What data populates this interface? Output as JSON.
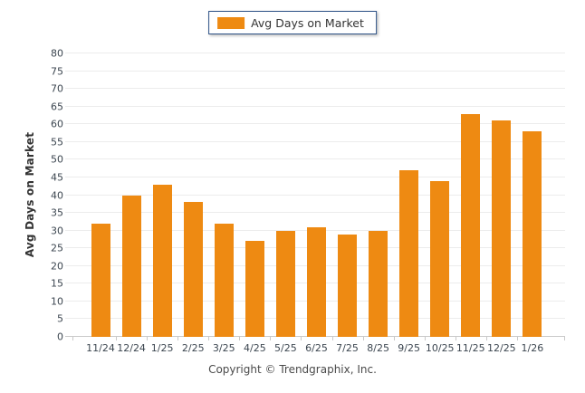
{
  "legend": {
    "label": "Avg Days on Market"
  },
  "y_axis": {
    "title": "Avg Days on Market"
  },
  "footer": {
    "copyright": "Copyright © Trendgraphix, Inc."
  },
  "colors": {
    "bar": "#EE8A12",
    "legend_border": "#2E5387",
    "grid_line": "#ECECEC",
    "axis_line": "#C9C9C9",
    "tick_label": "#3C4650",
    "text": "#333333",
    "copyright_text": "#4A4A4A"
  },
  "chart_data": {
    "type": "bar",
    "title": "",
    "legend_entries": [
      "Avg Days on Market"
    ],
    "legend_position": "top-center",
    "categories": [
      "11/24",
      "12/24",
      "1/25",
      "2/25",
      "3/25",
      "4/25",
      "5/25",
      "6/25",
      "7/25",
      "8/25",
      "9/25",
      "10/25",
      "11/25",
      "12/25",
      "1/26"
    ],
    "values": [
      32,
      40,
      43,
      38,
      32,
      27,
      30,
      31,
      29,
      30,
      47,
      44,
      63,
      61,
      58
    ],
    "xlabel": "",
    "ylabel": "Avg Days on Market",
    "ylim": [
      0,
      80
    ],
    "ytick_step": 5,
    "yticks": [
      0,
      5,
      10,
      15,
      20,
      25,
      30,
      35,
      40,
      45,
      50,
      55,
      60,
      65,
      70,
      75,
      80
    ],
    "grid": true
  }
}
